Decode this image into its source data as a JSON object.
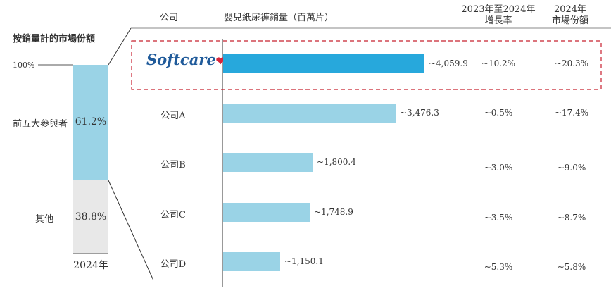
{
  "left_panel": {
    "title": "按銷量計的市場份額",
    "axis_label": "100%",
    "top_segment": {
      "label": "前五大參與者",
      "value_text": "61.2%"
    },
    "bottom_segment": {
      "label": "其他",
      "value_text": "38.8%"
    },
    "year_label": "2024年"
  },
  "headers": {
    "company": "公司",
    "sales": "嬰兒紙尿褲銷量（百萬片）",
    "growth_line1": "2023年至2024年",
    "growth_line2": "增長率",
    "share_line1": "2024年",
    "share_line2": "市場份額"
  },
  "brand": {
    "name": "Softcare",
    "icon": "heart-icon",
    "logo_color": "#1f5a9a",
    "heart_color": "#d9263a"
  },
  "colors": {
    "highlight_bar": "#27a8dc",
    "other_bars": "#9ad3e6",
    "top_segment": "#9ad3e6",
    "bottom_segment": "#e8e8e8",
    "highlight_border": "#c8202f"
  },
  "chart_data": [
    {
      "type": "bar",
      "orientation": "horizontal",
      "title": "嬰兒紙尿褲銷量（百萬片）",
      "categories": [
        "Softcare",
        "公司A",
        "公司B",
        "公司C",
        "公司D"
      ],
      "values": [
        4059.9,
        3476.3,
        1800.4,
        1748.9,
        1150.1
      ],
      "value_labels": [
        "~4,059.9",
        "~3,476.3",
        "~1,800.4",
        "~1,748.9",
        "~1,150.1"
      ],
      "growth": [
        "~10.2%",
        "~0.5%",
        "~3.0%",
        "~3.5%",
        "~5.3%"
      ],
      "market_share": [
        "~20.3%",
        "~17.4%",
        "~9.0%",
        "~8.7%",
        "~5.8%"
      ],
      "highlight_index": 0
    },
    {
      "type": "bar",
      "stacked": true,
      "title": "按銷量計的市場份額",
      "categories": [
        "2024年"
      ],
      "series": [
        {
          "name": "前五大參與者",
          "values": [
            61.2
          ]
        },
        {
          "name": "其他",
          "values": [
            38.8
          ]
        }
      ],
      "ylim": [
        0,
        100
      ]
    }
  ]
}
